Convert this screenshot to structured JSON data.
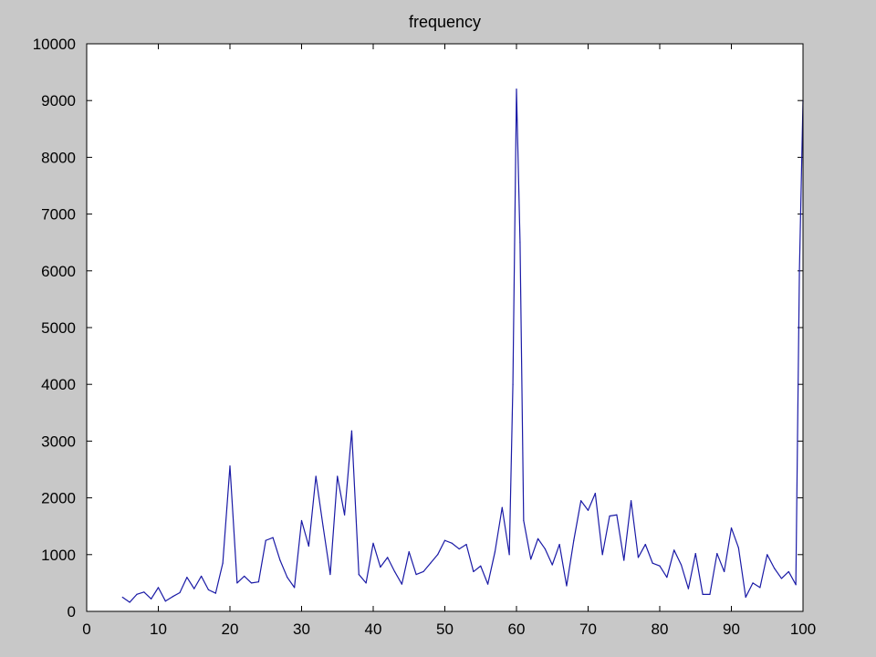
{
  "chart_data": {
    "type": "line",
    "title": "frequency",
    "xlabel": "",
    "ylabel": "",
    "xlim": [
      0,
      100
    ],
    "ylim": [
      0,
      10000
    ],
    "xticks": [
      0,
      10,
      20,
      30,
      40,
      50,
      60,
      70,
      80,
      90,
      100
    ],
    "yticks": [
      0,
      1000,
      2000,
      3000,
      4000,
      5000,
      6000,
      7000,
      8000,
      9000,
      10000
    ],
    "grid": false,
    "colors": {
      "line": "#1a1aa6",
      "figure_background": "#c8c8c8",
      "axes_background": "#ffffff",
      "axes_edge": "#000000"
    },
    "series": [
      {
        "x": [
          5,
          6,
          7,
          8,
          9,
          10,
          11,
          12,
          13,
          14,
          15,
          16,
          17,
          18,
          19,
          20,
          21,
          22,
          23,
          24,
          25,
          26,
          27,
          28,
          29,
          30,
          31,
          32,
          33,
          34,
          35,
          36,
          37,
          38,
          39,
          40,
          41,
          42,
          43,
          44,
          45,
          46,
          47,
          48,
          49,
          50,
          51,
          52,
          53,
          54,
          55,
          56,
          57,
          58,
          59,
          59.5,
          60,
          60.5,
          61,
          62,
          63,
          64,
          65,
          66,
          67,
          68,
          69,
          70,
          71,
          72,
          73,
          74,
          75,
          76,
          77,
          78,
          79,
          80,
          81,
          82,
          83,
          84,
          85,
          86,
          87,
          88,
          89,
          90,
          91,
          92,
          93,
          94,
          95,
          96,
          97,
          98,
          99,
          99.5,
          100
        ],
        "values": [
          250,
          160,
          300,
          340,
          220,
          420,
          180,
          260,
          330,
          600,
          400,
          620,
          380,
          320,
          850,
          2560,
          500,
          620,
          500,
          520,
          1250,
          1300,
          900,
          600,
          420,
          1600,
          1150,
          2380,
          1500,
          650,
          2380,
          1700,
          3180,
          650,
          500,
          1200,
          780,
          950,
          700,
          480,
          1050,
          650,
          700,
          850,
          1000,
          1250,
          1200,
          1100,
          1180,
          700,
          800,
          480,
          1050,
          1830,
          1000,
          4000,
          9200,
          6500,
          1600,
          920,
          1280,
          1100,
          820,
          1180,
          450,
          1250,
          1950,
          1780,
          2080,
          1000,
          1680,
          1700,
          900,
          1950,
          950,
          1180,
          850,
          800,
          600,
          1080,
          820,
          400,
          1020,
          300,
          300,
          1020,
          700,
          1470,
          1120,
          250,
          500,
          420,
          1000,
          760,
          580,
          700,
          470,
          6000,
          9000
        ]
      }
    ]
  }
}
